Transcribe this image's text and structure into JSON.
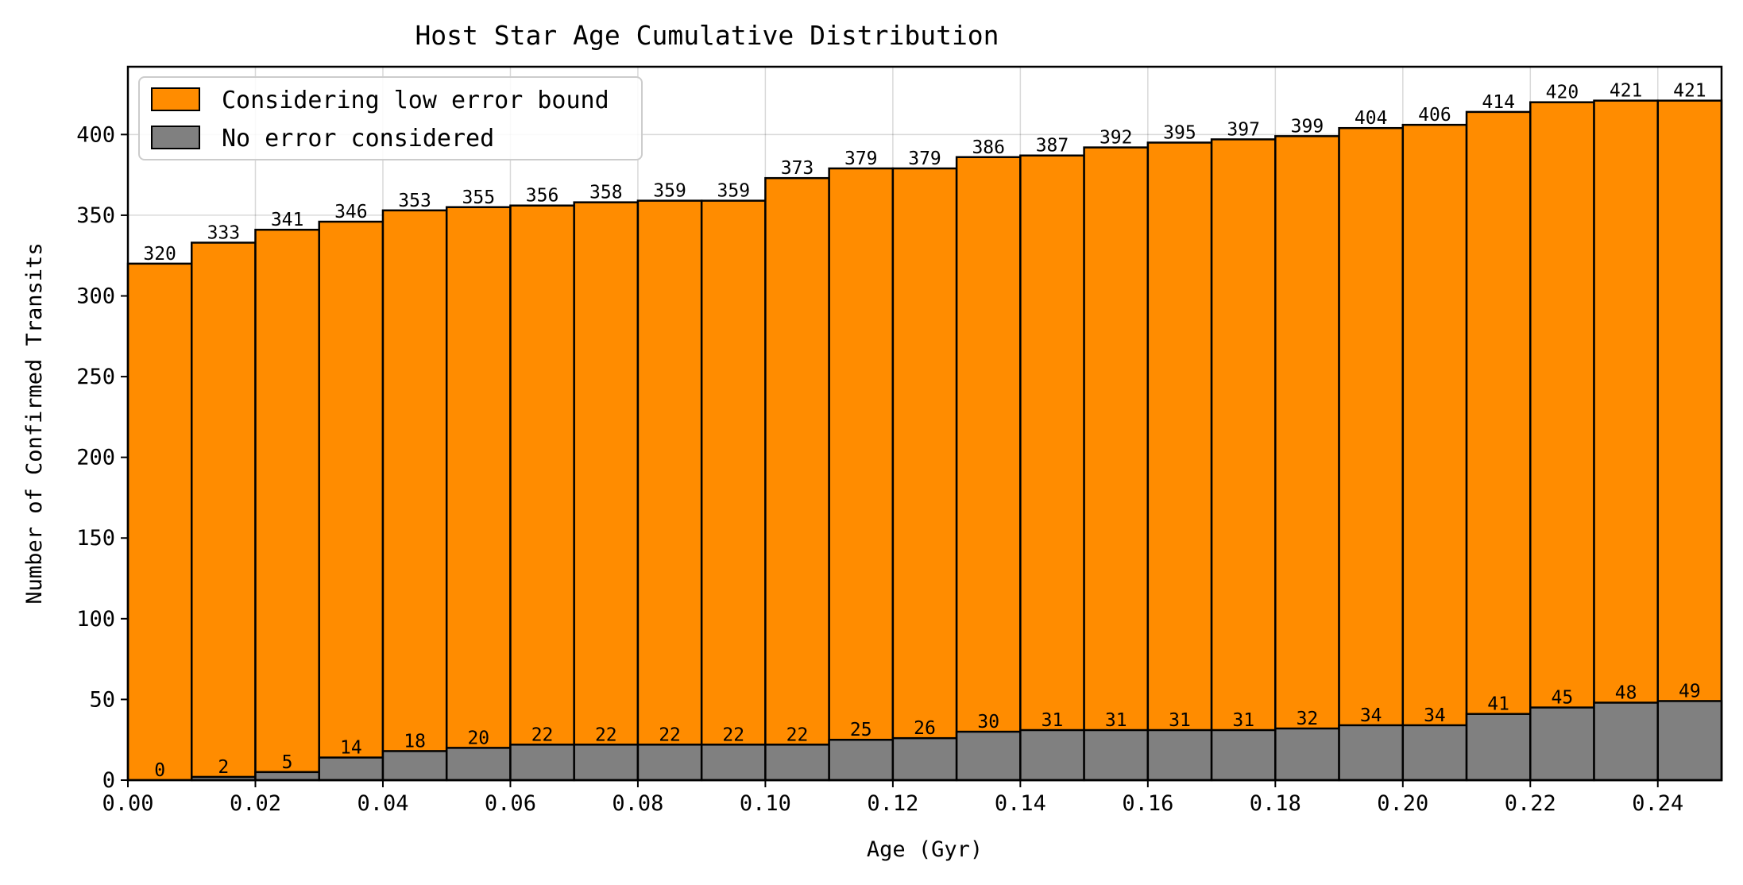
{
  "chart_data": {
    "type": "bar",
    "title": "Host Star Age Cumulative Distribution",
    "xlabel": "Age (Gyr)",
    "ylabel": "Number of Confirmed Transits",
    "xlim": [
      0,
      0.25
    ],
    "ylim": [
      0,
      442
    ],
    "bin_width": 0.01,
    "bin_edges": [
      0.0,
      0.01,
      0.02,
      0.03,
      0.04,
      0.05,
      0.06,
      0.07,
      0.08,
      0.09,
      0.1,
      0.11,
      0.12,
      0.13,
      0.14,
      0.15,
      0.16,
      0.17,
      0.18,
      0.19,
      0.2,
      0.21,
      0.22,
      0.23,
      0.24,
      0.25
    ],
    "x_ticks": [
      "0.00",
      "0.02",
      "0.04",
      "0.06",
      "0.08",
      "0.10",
      "0.12",
      "0.14",
      "0.16",
      "0.18",
      "0.20",
      "0.22",
      "0.24"
    ],
    "y_ticks": [
      "0",
      "50",
      "100",
      "150",
      "200",
      "250",
      "300",
      "350",
      "400"
    ],
    "grid": true,
    "legend_position": "top-left",
    "series": [
      {
        "name": "Considering low error bound",
        "color": "#ff8c00",
        "values": [
          320,
          333,
          341,
          346,
          353,
          355,
          356,
          358,
          359,
          359,
          373,
          379,
          379,
          386,
          387,
          392,
          395,
          397,
          399,
          404,
          406,
          414,
          420,
          421,
          421
        ]
      },
      {
        "name": "No error considered",
        "color": "#808080",
        "values": [
          0,
          2,
          5,
          14,
          18,
          20,
          22,
          22,
          22,
          22,
          22,
          25,
          26,
          30,
          31,
          31,
          31,
          31,
          32,
          34,
          34,
          41,
          45,
          48,
          49
        ]
      }
    ]
  }
}
